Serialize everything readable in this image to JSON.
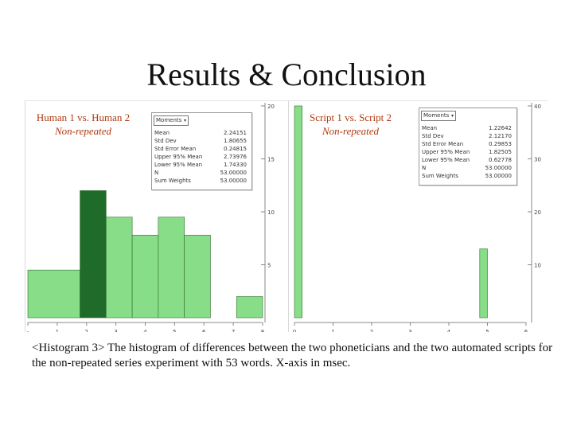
{
  "slide": {
    "title": "Results & Conclusion",
    "caption": "<Histogram 3> The histogram of differences between the two phoneticians and the two automated scripts for the non-repeated series experiment with 53 words. X-axis in msec."
  },
  "colors": {
    "bar_light": "#88dd88",
    "bar_dark": "#1f6b2a",
    "bar_edge": "#2f6f2f",
    "title_red": "#b03a10"
  },
  "chart_data": [
    {
      "type": "bar",
      "title": "Human 1 vs. Human 2",
      "subtitle": "Non-repeated",
      "xlim": [
        -1,
        8
      ],
      "ylim": [
        0,
        20
      ],
      "x_ticks": [
        "-",
        "1",
        "2",
        "3",
        "4",
        "5",
        "6",
        "7",
        "8"
      ],
      "y_ticks": [
        "20",
        "15",
        "10",
        "5"
      ],
      "bins": [
        {
          "from": -1,
          "to": 1,
          "value": 4.5,
          "dark": false
        },
        {
          "from": 1,
          "to": 2,
          "value": 12,
          "dark": true
        },
        {
          "from": 2,
          "to": 3,
          "value": 9.5,
          "dark": false
        },
        {
          "from": 3,
          "to": 4,
          "value": 7.8,
          "dark": false
        },
        {
          "from": 4,
          "to": 5,
          "value": 9.5,
          "dark": false
        },
        {
          "from": 5,
          "to": 6,
          "value": 7.8,
          "dark": false
        },
        {
          "from": 7,
          "to": 8,
          "value": 2,
          "dark": false
        }
      ],
      "moments": {
        "label": "Moments",
        "rows": [
          {
            "name": "Mean",
            "value": "2.24151"
          },
          {
            "name": "Std Dev",
            "value": "1.80655"
          },
          {
            "name": "Std Error Mean",
            "value": "0.24815"
          },
          {
            "name": "Upper 95% Mean",
            "value": "2.73976"
          },
          {
            "name": "Lower 95% Mean",
            "value": "1.74330"
          },
          {
            "name": "N",
            "value": "53.00000"
          },
          {
            "name": "Sum Weights",
            "value": "53.00000"
          }
        ]
      }
    },
    {
      "type": "bar",
      "title": "Script 1 vs. Script 2",
      "subtitle": "Non-repeated",
      "xlim": [
        0,
        6
      ],
      "ylim": [
        0,
        40
      ],
      "x_ticks": [
        "0",
        "1",
        "2",
        "3",
        "4",
        "5",
        "6"
      ],
      "y_ticks": [
        "40",
        "30",
        "20",
        "10"
      ],
      "bins": [
        {
          "from": 0,
          "to": 0.2,
          "value": 40,
          "dark": false
        },
        {
          "from": 4.8,
          "to": 5,
          "value": 13,
          "dark": false
        }
      ],
      "moments": {
        "label": "Moments",
        "rows": [
          {
            "name": "Mean",
            "value": "1.22642"
          },
          {
            "name": "Std Dev",
            "value": "2.12170"
          },
          {
            "name": "Std Error Mean",
            "value": "0.29853"
          },
          {
            "name": "Upper 95% Mean",
            "value": "1.82505"
          },
          {
            "name": "Lower 95% Mean",
            "value": "0.62778"
          },
          {
            "name": "N",
            "value": "53.00000"
          },
          {
            "name": "Sum Weights",
            "value": "53.00000"
          }
        ]
      }
    }
  ]
}
